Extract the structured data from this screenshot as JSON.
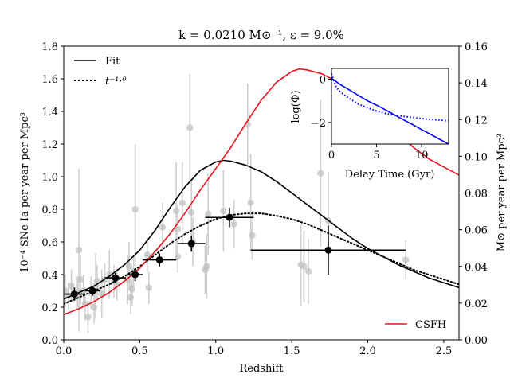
{
  "chart_data": [
    {
      "type": "scatter",
      "title": "k = 0.0210 M⊙⁻¹,  ε = 9.0%",
      "xlabel": "Redshift",
      "ylabel": "10⁻⁴ SNe Ia per year per Mpc³",
      "y2label": "M⊙ per year per Mpc³",
      "xlim": [
        0,
        2.6
      ],
      "ylim": [
        0,
        1.8
      ],
      "y2lim": [
        0,
        0.16
      ],
      "xticks": [
        "0.0",
        "0.5",
        "1.0",
        "1.5",
        "2.0",
        "2.5"
      ],
      "yticks": [
        "0.0",
        "0.2",
        "0.4",
        "0.6",
        "0.8",
        "1.0",
        "1.2",
        "1.4",
        "1.6",
        "1.8"
      ],
      "y2ticks": [
        "0.00",
        "0.02",
        "0.04",
        "0.06",
        "0.08",
        "0.10",
        "0.12",
        "0.14",
        "0.16"
      ],
      "grid": false,
      "legends": [
        {
          "placement": "upper-left",
          "entries": [
            {
              "label": "Fit",
              "style": "solid",
              "color": "#000000"
            },
            {
              "label": "t⁻¹·⁰",
              "style": "dotted",
              "color": "#000000"
            }
          ]
        },
        {
          "placement": "lower-right",
          "entries": [
            {
              "label": "CSFH",
              "style": "solid",
              "color": "#e8131d"
            }
          ]
        }
      ],
      "series": [
        {
          "name": "Fit",
          "kind": "line",
          "color": "#000000",
          "style": "solid",
          "x": [
            0.0,
            0.1,
            0.2,
            0.3,
            0.4,
            0.5,
            0.6,
            0.7,
            0.8,
            0.9,
            1.0,
            1.05,
            1.1,
            1.2,
            1.3,
            1.4,
            1.5,
            1.6,
            1.7,
            1.8,
            1.9,
            2.0,
            2.1,
            2.2,
            2.3,
            2.4,
            2.5,
            2.6
          ],
          "y": [
            0.25,
            0.29,
            0.33,
            0.39,
            0.46,
            0.55,
            0.67,
            0.81,
            0.94,
            1.04,
            1.09,
            1.1,
            1.095,
            1.07,
            1.03,
            0.97,
            0.9,
            0.83,
            0.76,
            0.69,
            0.62,
            0.56,
            0.51,
            0.46,
            0.42,
            0.38,
            0.35,
            0.32
          ]
        },
        {
          "name": "t⁻¹·⁰",
          "kind": "line",
          "color": "#000000",
          "style": "dotted",
          "x": [
            0.0,
            0.1,
            0.2,
            0.3,
            0.4,
            0.5,
            0.6,
            0.7,
            0.8,
            0.9,
            1.0,
            1.1,
            1.2,
            1.3,
            1.4,
            1.5,
            1.6,
            1.7,
            1.8,
            1.9,
            2.0,
            2.1,
            2.2,
            2.3,
            2.4,
            2.5,
            2.6
          ],
          "y": [
            0.22,
            0.26,
            0.3,
            0.34,
            0.39,
            0.45,
            0.52,
            0.59,
            0.65,
            0.7,
            0.74,
            0.765,
            0.775,
            0.775,
            0.76,
            0.74,
            0.71,
            0.67,
            0.63,
            0.59,
            0.55,
            0.51,
            0.47,
            0.43,
            0.4,
            0.37,
            0.34
          ]
        },
        {
          "name": "CSFH",
          "kind": "line",
          "color": "#e8131d",
          "style": "solid",
          "axis": "right",
          "x": [
            0.0,
            0.1,
            0.2,
            0.3,
            0.4,
            0.5,
            0.6,
            0.7,
            0.8,
            0.9,
            1.0,
            1.1,
            1.2,
            1.3,
            1.4,
            1.5,
            1.55,
            1.6,
            1.7,
            1.8,
            1.9,
            2.0,
            2.1,
            2.2,
            2.3,
            2.4,
            2.5,
            2.6
          ],
          "y": [
            0.0138,
            0.0169,
            0.0209,
            0.0258,
            0.032,
            0.0391,
            0.048,
            0.0578,
            0.0693,
            0.0818,
            0.0933,
            0.1049,
            0.1182,
            0.1307,
            0.1404,
            0.1462,
            0.1476,
            0.1471,
            0.1449,
            0.1404,
            0.1342,
            0.1271,
            0.1191,
            0.112,
            0.1049,
            0.0987,
            0.0942,
            0.0898
          ]
        },
        {
          "name": "",
          "kind": "scatter-errorbar",
          "color": "#bfbfbf",
          "points": [
            {
              "x": 0.01,
              "y": 0.3,
              "e": 0.1
            },
            {
              "x": 0.03,
              "y": 0.27,
              "e": 0.08
            },
            {
              "x": 0.05,
              "y": 0.33,
              "e": 0.1
            },
            {
              "x": 0.09,
              "y": 0.29,
              "e": 0.1
            },
            {
              "x": 0.1,
              "y": 0.55,
              "e": 0.5
            },
            {
              "x": 0.11,
              "y": 0.37,
              "e": 0.15
            },
            {
              "x": 0.13,
              "y": 0.3,
              "e": 0.1
            },
            {
              "x": 0.14,
              "y": 0.22,
              "e": 0.1
            },
            {
              "x": 0.16,
              "y": 0.14,
              "e": 0.1
            },
            {
              "x": 0.18,
              "y": 0.29,
              "e": 0.1
            },
            {
              "x": 0.2,
              "y": 0.2,
              "e": 0.1
            },
            {
              "x": 0.21,
              "y": 0.33,
              "e": 0.2
            },
            {
              "x": 0.22,
              "y": 0.36,
              "e": 0.1
            },
            {
              "x": 0.25,
              "y": 0.28,
              "e": 0.15
            },
            {
              "x": 0.27,
              "y": 0.37,
              "e": 0.1
            },
            {
              "x": 0.3,
              "y": 0.4,
              "e": 0.15
            },
            {
              "x": 0.33,
              "y": 0.36,
              "e": 0.1
            },
            {
              "x": 0.35,
              "y": 0.34,
              "e": 0.1
            },
            {
              "x": 0.42,
              "y": 0.37,
              "e": 0.15
            },
            {
              "x": 0.43,
              "y": 0.45,
              "e": 0.15
            },
            {
              "x": 0.44,
              "y": 0.26,
              "e": 0.1
            },
            {
              "x": 0.45,
              "y": 0.31,
              "e": 0.1
            },
            {
              "x": 0.46,
              "y": 0.42,
              "e": 0.1
            },
            {
              "x": 0.47,
              "y": 0.8,
              "e": 0.4
            },
            {
              "x": 0.55,
              "y": 0.52,
              "e": 0.1
            },
            {
              "x": 0.56,
              "y": 0.32,
              "e": 0.1
            },
            {
              "x": 0.65,
              "y": 0.69,
              "e": 0.15
            },
            {
              "x": 0.74,
              "y": 0.79,
              "e": 0.3
            },
            {
              "x": 0.75,
              "y": 0.68,
              "e": 0.15
            },
            {
              "x": 0.75,
              "y": 0.51,
              "e": 0.1
            },
            {
              "x": 0.78,
              "y": 0.84,
              "e": 0.25
            },
            {
              "x": 0.83,
              "y": 1.3,
              "e": 0.33
            },
            {
              "x": 0.84,
              "y": 0.78,
              "e": 0.2
            },
            {
              "x": 0.85,
              "y": 0.6,
              "e": 0.15
            },
            {
              "x": 0.93,
              "y": 0.43,
              "e": 0.15
            },
            {
              "x": 0.94,
              "y": 0.45,
              "e": 0.2
            },
            {
              "x": 0.95,
              "y": 0.77,
              "e": 0.25
            },
            {
              "x": 1.05,
              "y": 0.79,
              "e": 0.25
            },
            {
              "x": 1.12,
              "y": 0.71,
              "e": 0.15
            },
            {
              "x": 1.21,
              "y": 1.32,
              "e": 0.25
            },
            {
              "x": 1.23,
              "y": 0.84,
              "e": 0.3
            },
            {
              "x": 1.24,
              "y": 0.64,
              "e": 0.15
            },
            {
              "x": 1.56,
              "y": 0.46,
              "e": 0.25
            },
            {
              "x": 1.58,
              "y": 0.45,
              "e": 0.22
            },
            {
              "x": 1.61,
              "y": 0.42,
              "e": 0.2
            },
            {
              "x": 1.69,
              "y": 1.02,
              "e": 0.45
            },
            {
              "x": 1.74,
              "y": 0.73,
              "e": 0.3
            },
            {
              "x": 2.25,
              "y": 0.49,
              "e": 0.12
            }
          ]
        },
        {
          "name": "",
          "kind": "binned-errorbar",
          "color": "#000000",
          "points": [
            {
              "x": 0.07,
              "y": 0.28,
              "xerr": 0.07,
              "yerr": 0.04
            },
            {
              "x": 0.19,
              "y": 0.3,
              "xerr": 0.05,
              "yerr": 0.03
            },
            {
              "x": 0.34,
              "y": 0.38,
              "xerr": 0.07,
              "yerr": 0.03
            },
            {
              "x": 0.47,
              "y": 0.4,
              "xerr": 0.05,
              "yerr": 0.04
            },
            {
              "x": 0.63,
              "y": 0.49,
              "xerr": 0.11,
              "yerr": 0.04
            },
            {
              "x": 0.84,
              "y": 0.59,
              "xerr": 0.09,
              "yerr": 0.05
            },
            {
              "x": 1.09,
              "y": 0.75,
              "xerr": 0.16,
              "yerr": 0.06
            },
            {
              "x": 1.74,
              "y": 0.55,
              "xerr": 0.51,
              "yerr": 0.15
            }
          ]
        }
      ]
    },
    {
      "type": "line",
      "title": "",
      "xlabel": "Delay Time (Gyr)",
      "ylabel": "log(Φ)",
      "xlim": [
        0,
        13
      ],
      "ylim": [
        -3.0,
        0.5
      ],
      "xticks": [
        "0",
        "5",
        "10"
      ],
      "yticks": [
        "−2",
        "0"
      ],
      "series": [
        {
          "name": "",
          "color": "#0000ff",
          "style": "solid",
          "x": [
            0,
            1,
            2,
            3,
            4,
            5,
            6,
            7,
            8,
            9,
            10,
            11,
            12,
            13
          ],
          "y": [
            0.05,
            -0.25,
            -0.5,
            -0.75,
            -1.0,
            -1.2,
            -1.42,
            -1.65,
            -1.88,
            -2.1,
            -2.33,
            -2.55,
            -2.78,
            -3.0
          ]
        },
        {
          "name": "",
          "color": "#0000ff",
          "style": "dotted",
          "x": [
            0,
            0.5,
            1,
            2,
            3,
            4,
            5,
            6,
            7,
            8,
            9,
            10,
            11,
            12,
            13
          ],
          "y": [
            0.25,
            -0.35,
            -0.6,
            -0.9,
            -1.15,
            -1.32,
            -1.47,
            -1.58,
            -1.66,
            -1.72,
            -1.77,
            -1.82,
            -1.86,
            -1.89,
            -1.92
          ]
        }
      ]
    }
  ]
}
